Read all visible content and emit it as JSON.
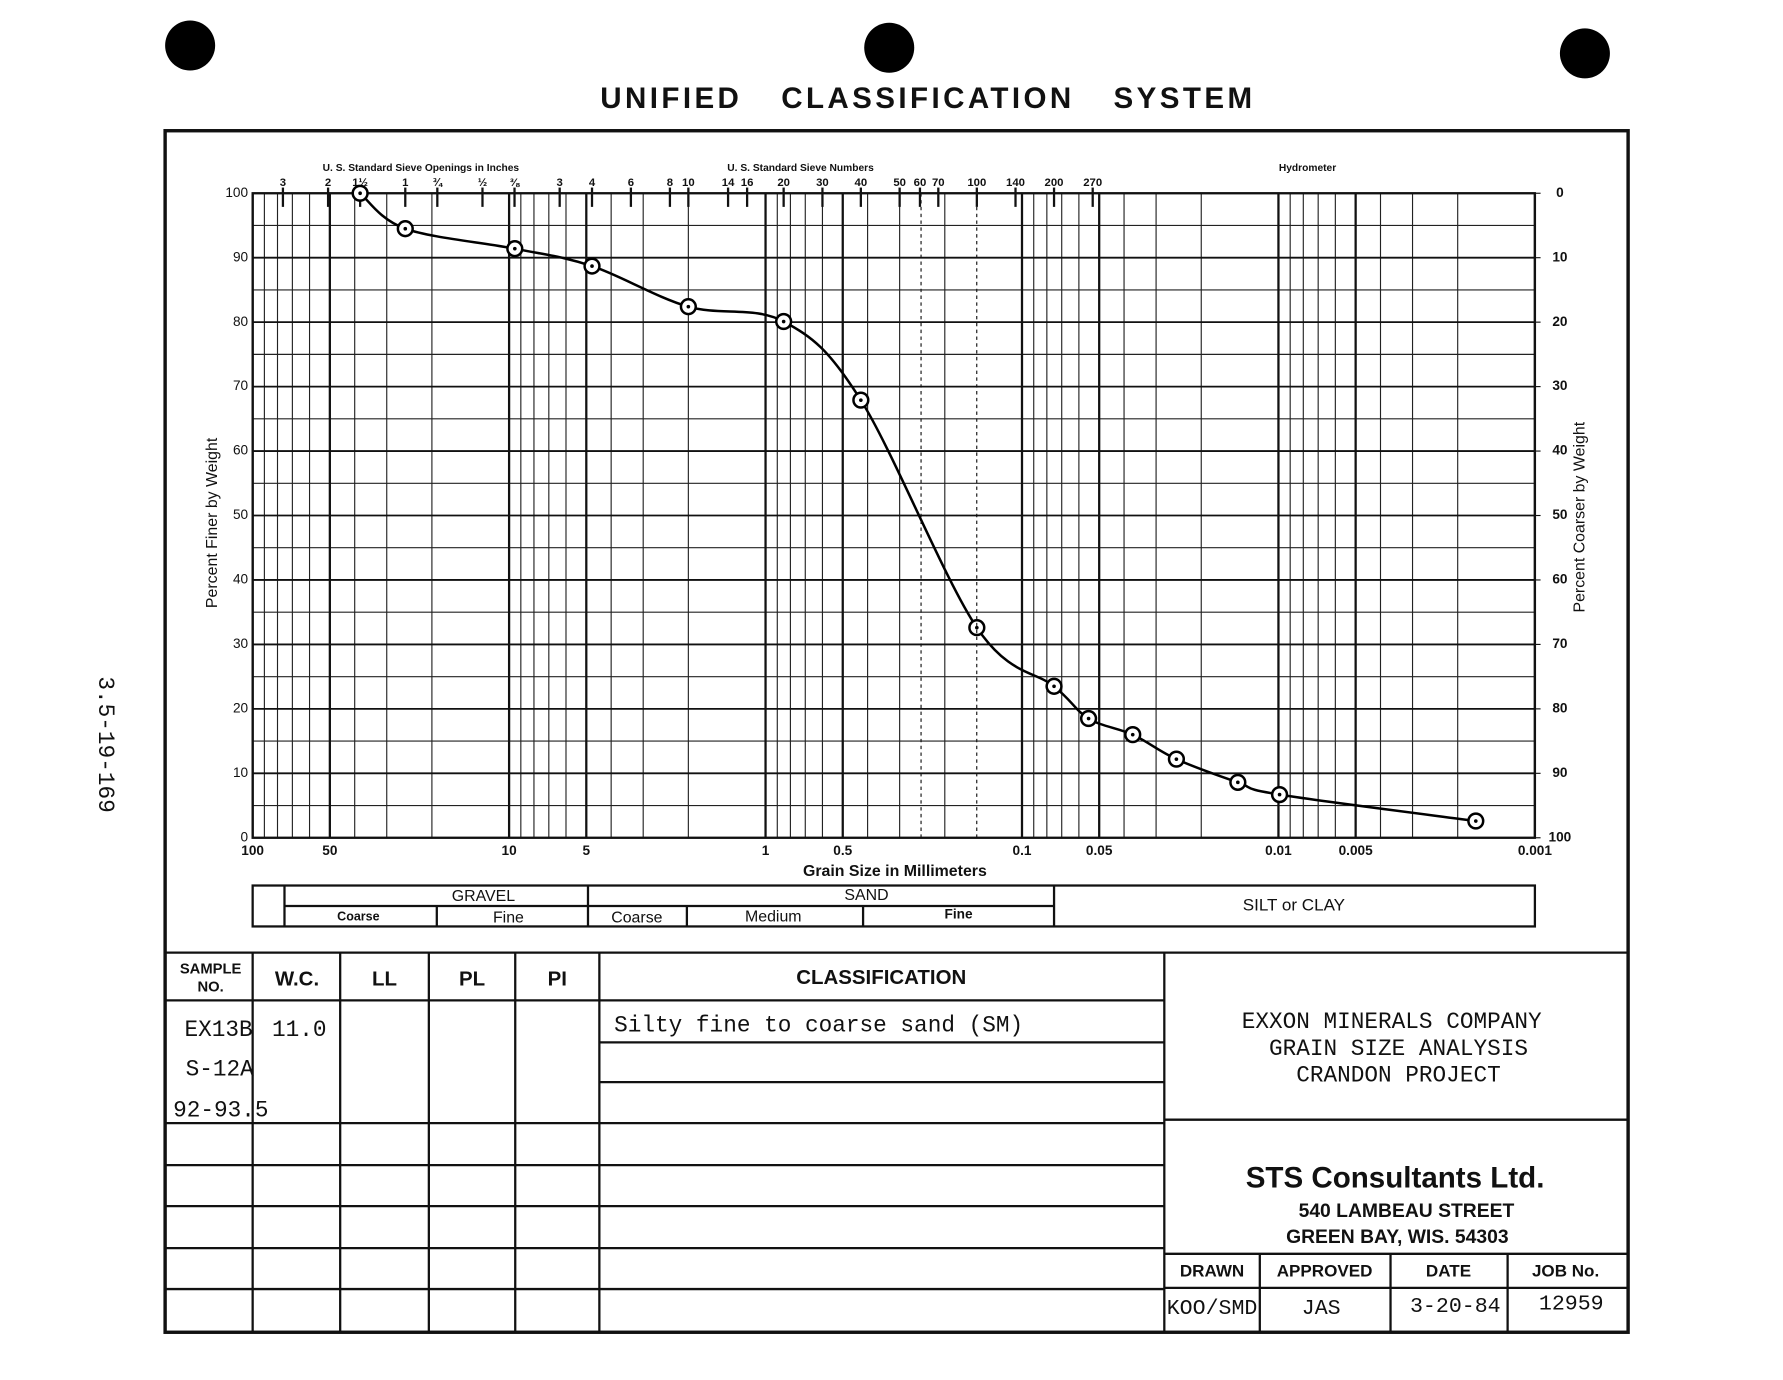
{
  "title": "UNIFIED CLASSIFICATION SYSTEM",
  "side_note": "3.5-19-169",
  "chart_data": {
    "type": "line",
    "xlabel": "Grain Size in Millimeters",
    "ylabel": "Percent Finer by Weight",
    "y2label": "Percent Coarser by Weight",
    "xscale": "log",
    "xlim": [
      100,
      0.001
    ],
    "xticks": [
      100,
      50,
      10,
      5,
      1,
      0.5,
      0.1,
      0.05,
      0.01,
      0.005,
      0.001
    ],
    "ylim": [
      0,
      100
    ],
    "yticks": [
      0,
      10,
      20,
      30,
      40,
      50,
      60,
      70,
      80,
      90,
      100
    ],
    "y2lim": [
      100,
      0
    ],
    "y2ticks": [
      0,
      10,
      20,
      30,
      40,
      50,
      60,
      70,
      80,
      90,
      100
    ],
    "grid": true,
    "x2_groups": [
      "U. S. Standard Sieve Openings in Inches",
      "U. S. Standard Sieve Numbers",
      "Hydrometer"
    ],
    "x2ticks": [
      {
        "value": 76.2,
        "label": "3"
      },
      {
        "value": 50.8,
        "label": "2"
      },
      {
        "value": 38.1,
        "label": "1½"
      },
      {
        "value": 25.4,
        "label": "1"
      },
      {
        "value": 19.05,
        "label": "¾"
      },
      {
        "value": 12.7,
        "label": "½"
      },
      {
        "value": 9.525,
        "label": "⅜"
      },
      {
        "value": 6.35,
        "label": "3"
      },
      {
        "value": 4.75,
        "label": "4"
      },
      {
        "value": 3.35,
        "label": "6"
      },
      {
        "value": 2.36,
        "label": "8"
      },
      {
        "value": 2.0,
        "label": "10"
      },
      {
        "value": 1.4,
        "label": "14"
      },
      {
        "value": 1.18,
        "label": "16"
      },
      {
        "value": 0.85,
        "label": "20"
      },
      {
        "value": 0.6,
        "label": "30"
      },
      {
        "value": 0.425,
        "label": "40"
      },
      {
        "value": 0.3,
        "label": "50"
      },
      {
        "value": 0.25,
        "label": "60"
      },
      {
        "value": 0.212,
        "label": "70"
      },
      {
        "value": 0.15,
        "label": "100"
      },
      {
        "value": 0.106,
        "label": "140"
      },
      {
        "value": 0.075,
        "label": "200"
      },
      {
        "value": 0.053,
        "label": "270"
      }
    ],
    "series": [
      {
        "color": "#000000",
        "x": [
          38.1,
          25.4,
          9.5,
          4.75,
          2.0,
          0.85,
          0.425,
          0.15,
          0.075,
          0.055,
          0.037,
          0.025,
          0.0144,
          0.0099,
          0.0017
        ],
        "values": [
          100,
          94.5,
          91.4,
          88.7,
          82.4,
          80.1,
          67.9,
          32.6,
          23.5,
          18.5,
          16.0,
          12.2,
          8.6,
          6.7,
          2.6
        ]
      }
    ]
  },
  "classification_scale": [
    {
      "label": "GRAVEL",
      "subs": [
        "Coarse",
        "Fine"
      ]
    },
    {
      "label": "SAND",
      "subs": [
        "Coarse",
        "Medium",
        "Fine"
      ]
    },
    {
      "label": "SILT or CLAY"
    }
  ],
  "table": {
    "headers": [
      [
        "SAMPLE",
        "NO."
      ],
      "W.C.",
      "LL",
      "PL",
      "PI",
      "CLASSIFICATION"
    ],
    "sample_no": [
      "EX13B",
      "S-12A",
      "92-93.5"
    ],
    "wc": "11.0",
    "classification": "Silty fine to coarse sand (SM)"
  },
  "project": [
    "EXXON MINERALS COMPANY",
    "GRAIN SIZE ANALYSIS",
    "CRANDON PROJECT"
  ],
  "consultant": {
    "name": "STS Consultants Ltd.",
    "address": [
      "540 LAMBEAU STREET",
      "GREEN BAY, WIS. 54303"
    ]
  },
  "title_block": {
    "headers": [
      "DRAWN",
      "APPROVED",
      "DATE",
      "JOB No."
    ],
    "values": [
      "KOO/SMD",
      "JAS",
      "3-20-84",
      "12959"
    ]
  }
}
